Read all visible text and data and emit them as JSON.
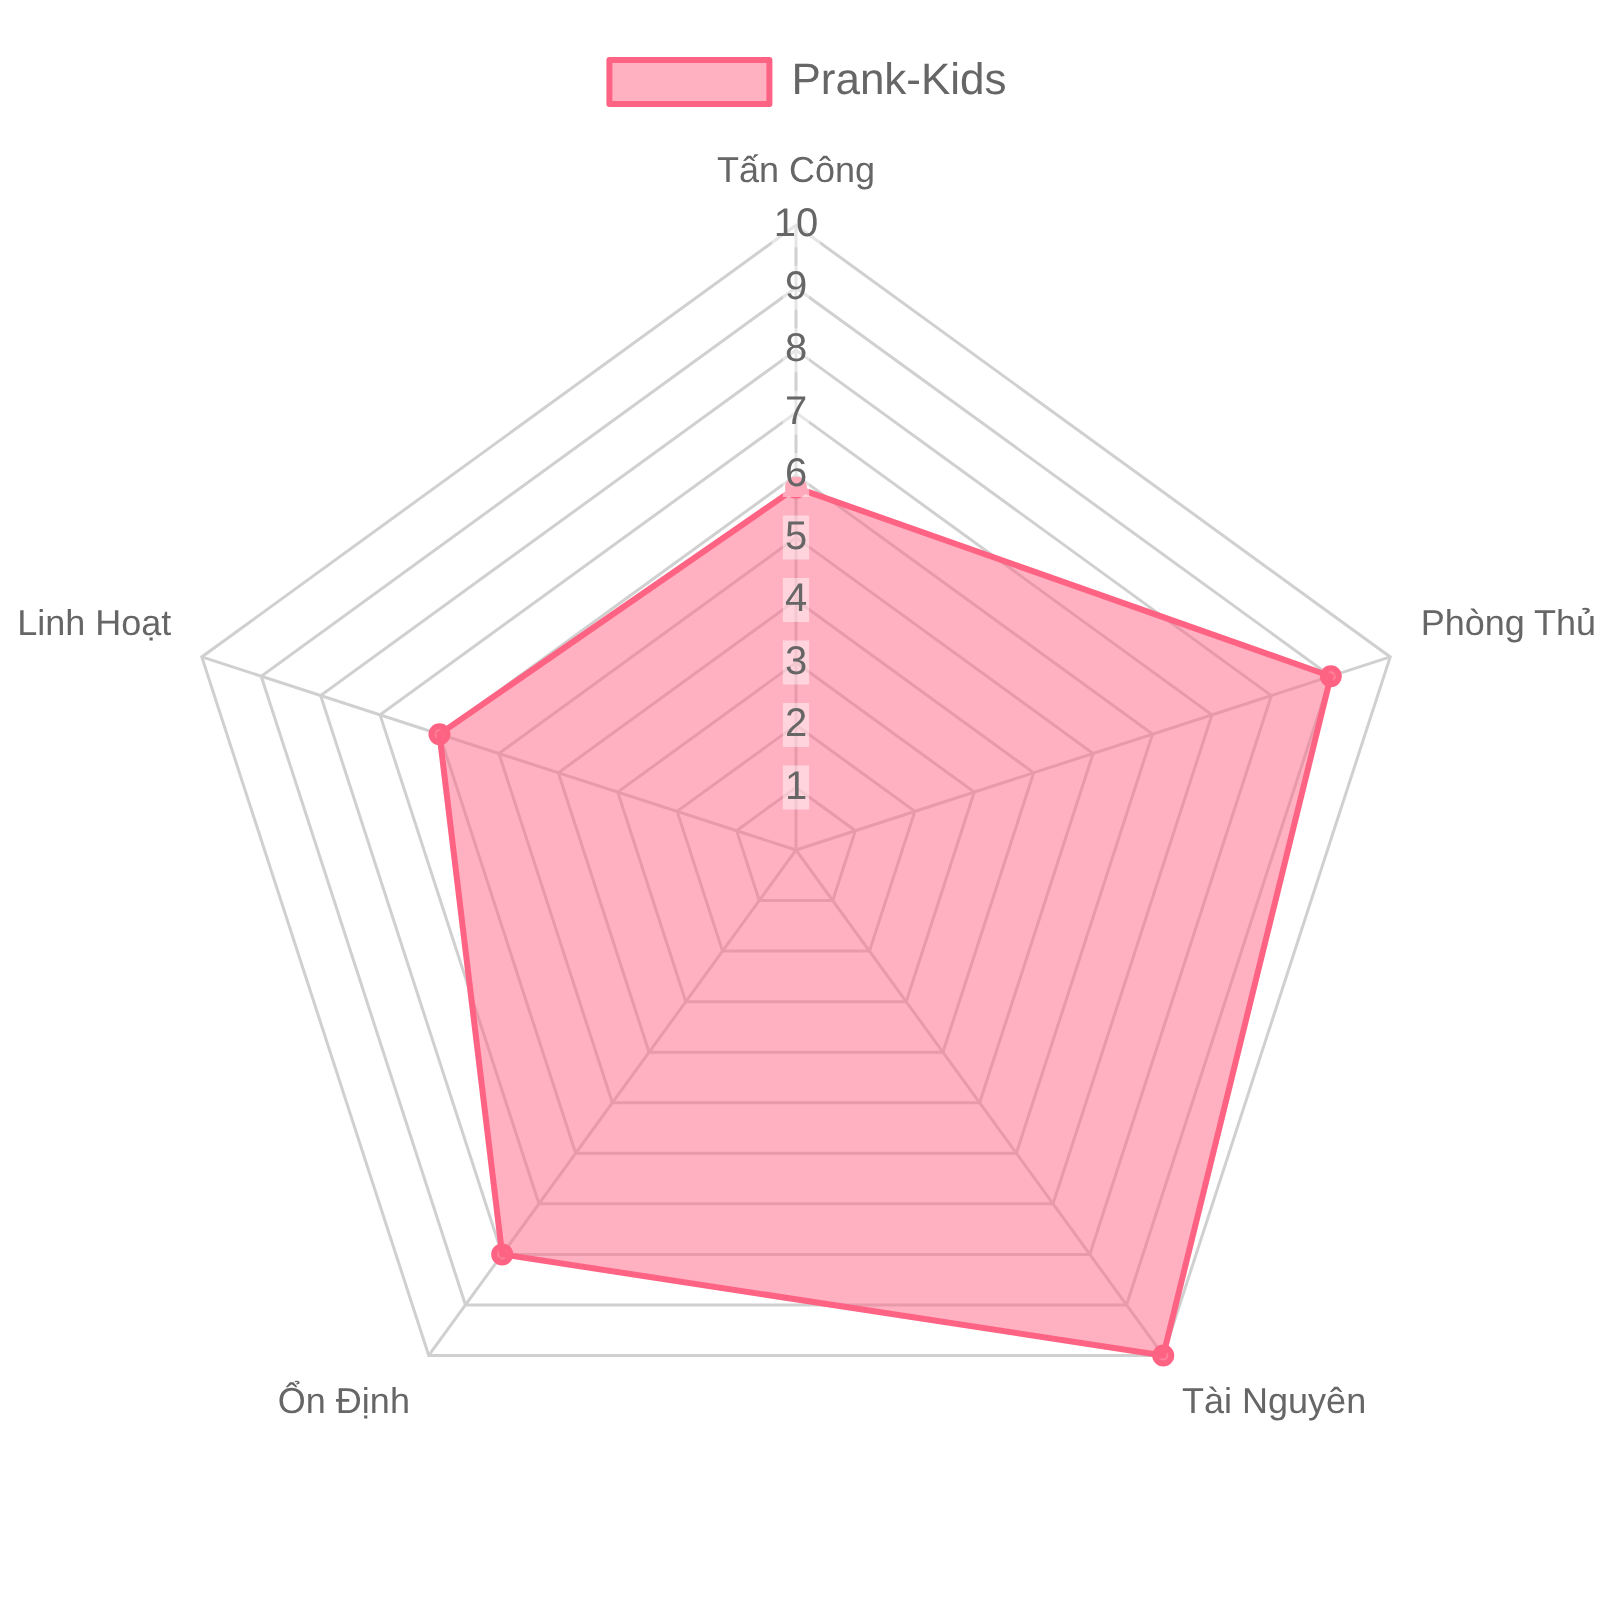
{
  "chart_data": {
    "type": "radar",
    "categories": [
      "Tấn Công",
      "Phòng Thủ",
      "Tài Nguyên",
      "Ổn Định",
      "Linh Hoạt"
    ],
    "series": [
      {
        "name": "Prank-Kids",
        "color": "#ff6384",
        "values": [
          5.8,
          9,
          10,
          8,
          6
        ]
      }
    ],
    "ylim": [
      0,
      10
    ],
    "yticks": [
      1,
      2,
      3,
      4,
      5,
      6,
      7,
      8,
      9,
      10
    ],
    "grid": true,
    "legend": "top",
    "marker": "circle"
  }
}
